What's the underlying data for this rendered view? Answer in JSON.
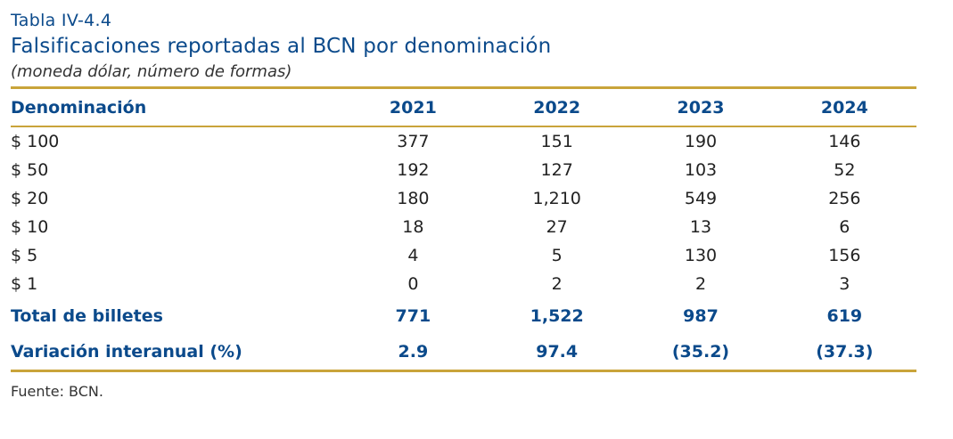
{
  "header": {
    "label": "Tabla IV-4.4",
    "title": "Falsificaciones reportadas al BCN por denominación",
    "subtitle": "(moneda dólar, número de formas)"
  },
  "table": {
    "columns": [
      "Denominación",
      "2021",
      "2022",
      "2023",
      "2024"
    ],
    "rows": [
      [
        "$ 100",
        "377",
        "151",
        "190",
        "146"
      ],
      [
        "$ 50",
        "192",
        "127",
        "103",
        "52"
      ],
      [
        "$ 20",
        "180",
        "1,210",
        "549",
        "256"
      ],
      [
        "$ 10",
        "18",
        "27",
        "13",
        "6"
      ],
      [
        "$ 5",
        "4",
        "5",
        "130",
        "156"
      ],
      [
        "$ 1",
        "0",
        "2",
        "2",
        "3"
      ]
    ],
    "total": [
      "Total de billetes",
      "771",
      "1,522",
      "987",
      "619"
    ],
    "variation": [
      "Variación interanual (%)",
      "2.9",
      "97.4",
      "(35.2)",
      "(37.3)"
    ]
  },
  "footer": {
    "source": "Fuente: BCN."
  },
  "colors": {
    "heading_blue": "#0b4a8b",
    "rule_gold": "#c9a43a"
  }
}
